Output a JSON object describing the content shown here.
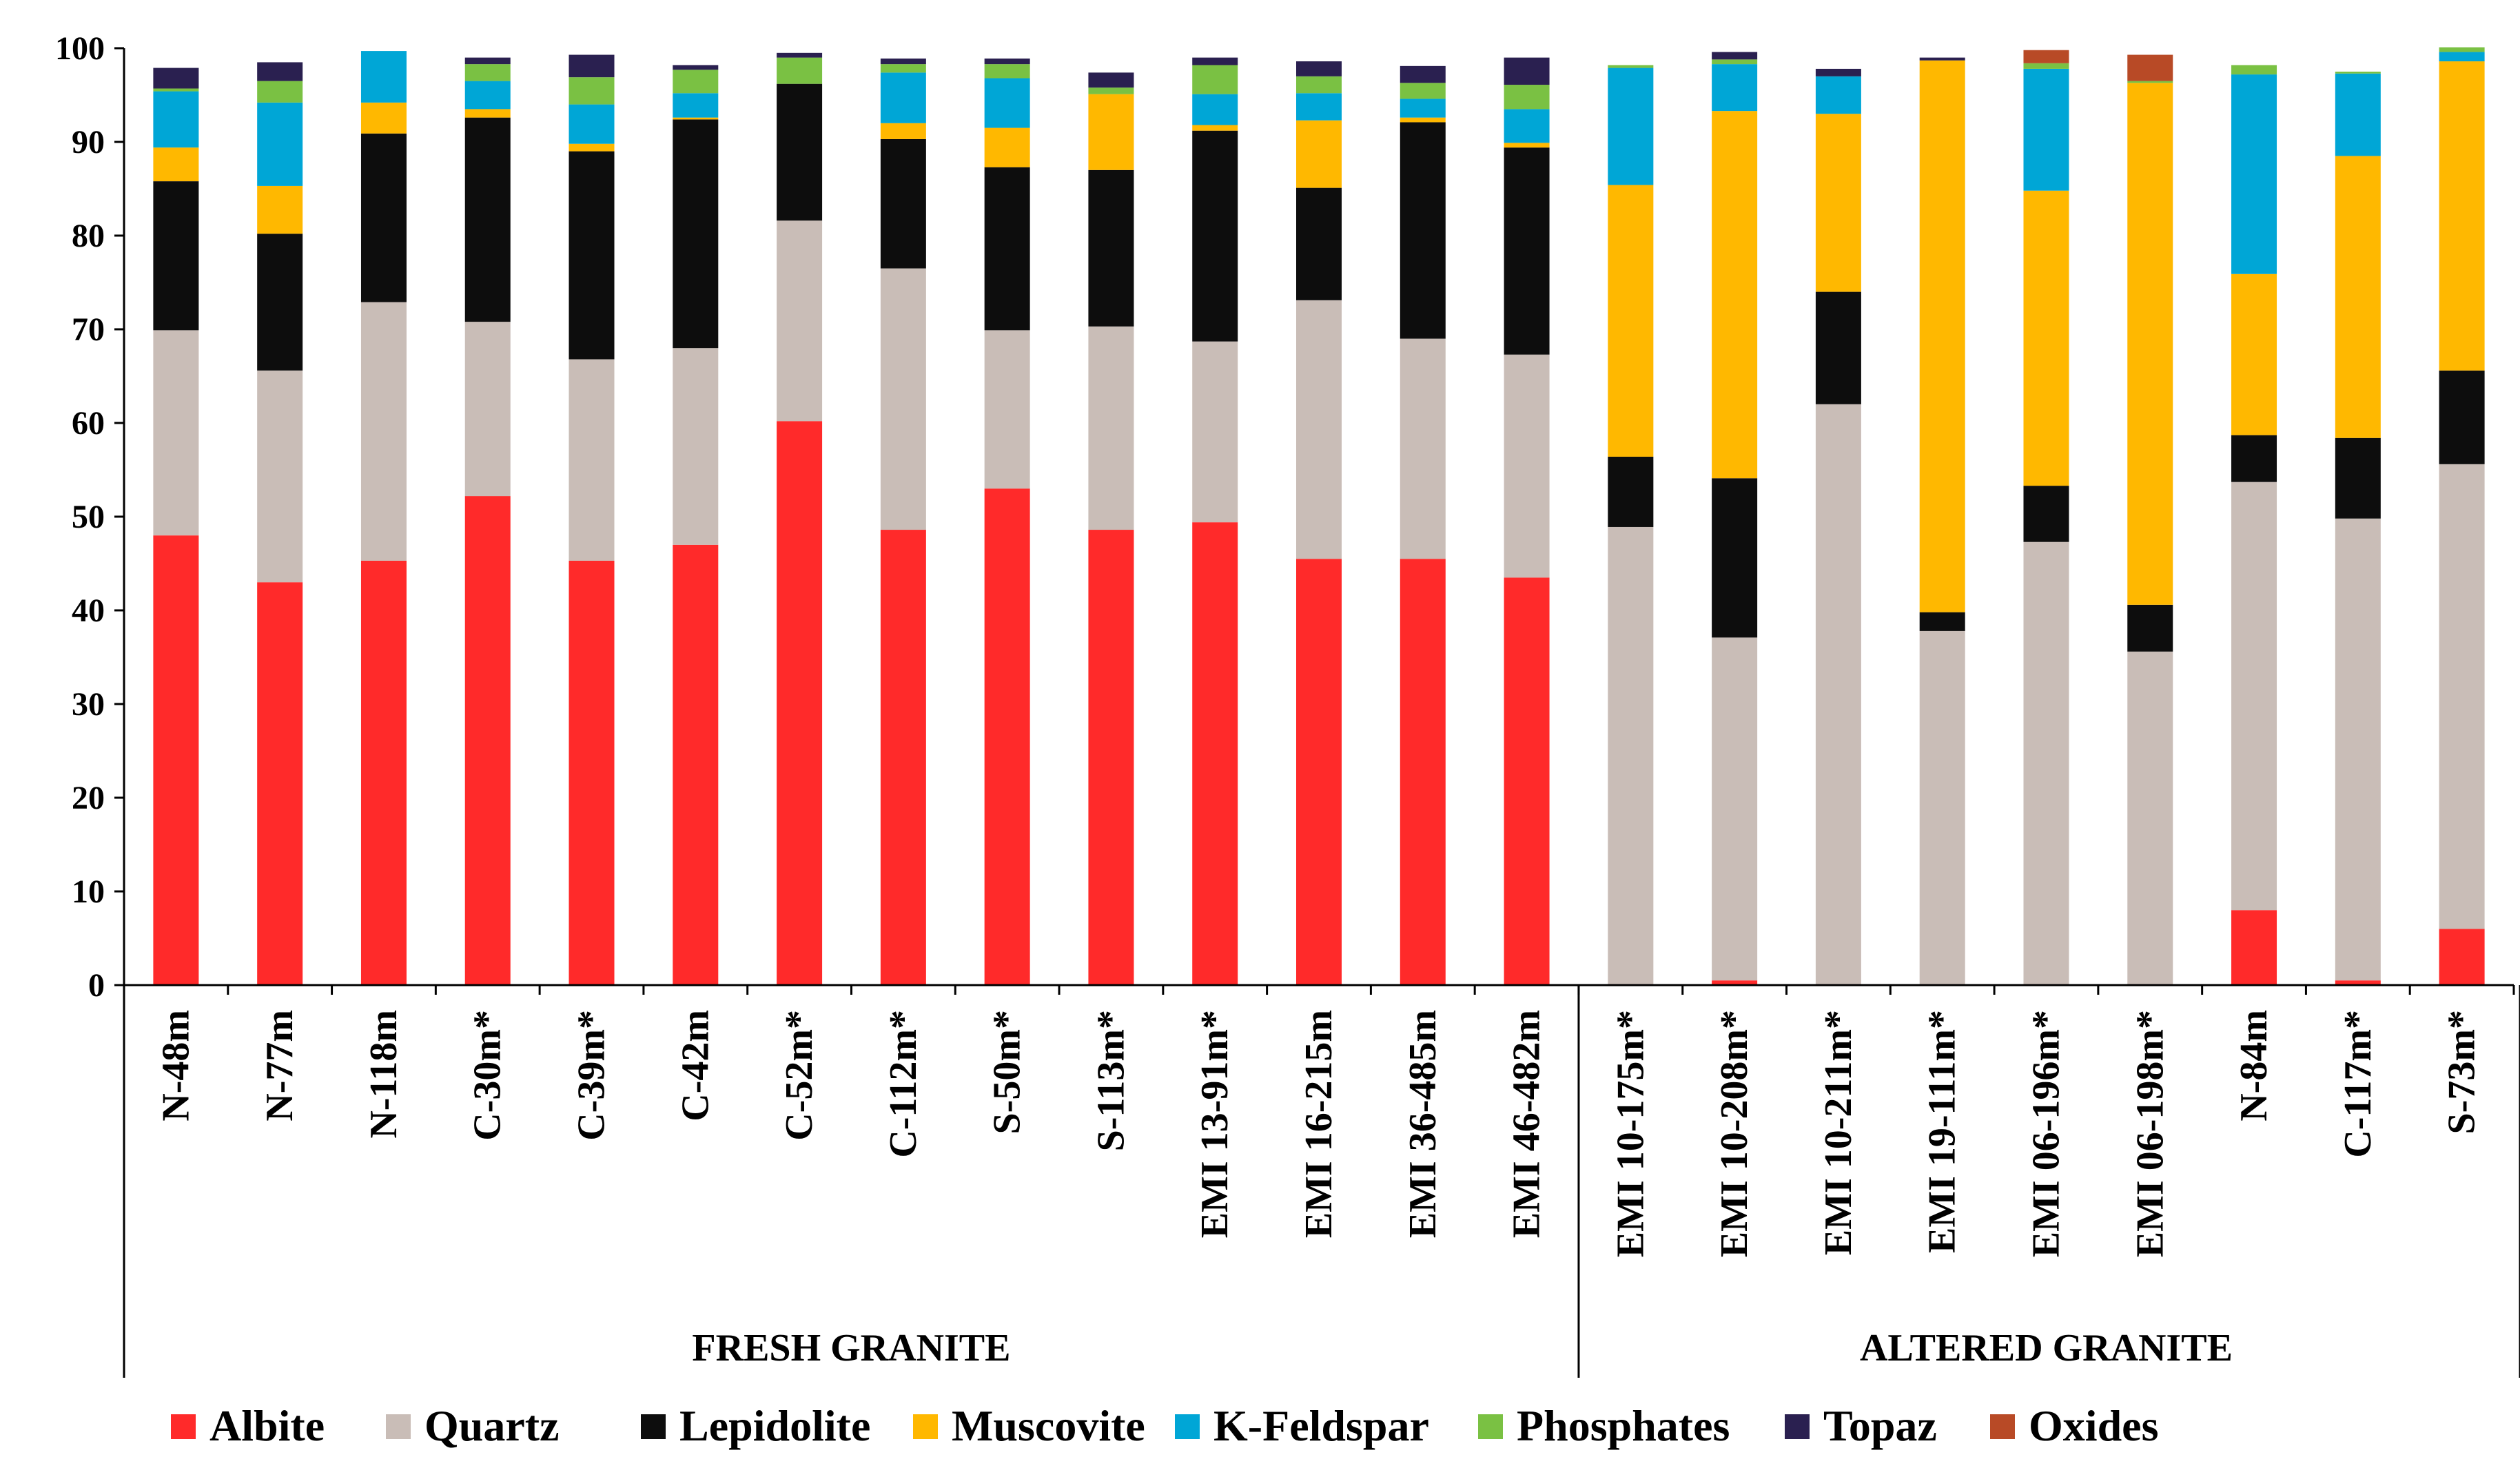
{
  "chart_data": {
    "type": "bar",
    "stacked": true,
    "ylim": [
      0,
      100
    ],
    "yticks": [
      "0",
      "10",
      "20",
      "30",
      "40",
      "50",
      "60",
      "70",
      "80",
      "90",
      "100"
    ],
    "categories": [
      "N-48m",
      "N-77m",
      "N-118m",
      "C-30m*",
      "C-39m*",
      "C-42m",
      "C-52m*",
      "C-112m*",
      "S-50m*",
      "S-113m*",
      "EMI 13-91m*",
      "EMI 16-215m",
      "EMI 36-485m",
      "EMI 46-482m",
      "EMI 10-175m*",
      "EMI 10-208m*",
      "EMI 10-211m*",
      "EMI 19-111m*",
      "EMI 06-196m*",
      "EMI 06-198m*",
      "N-84m",
      "C-117m*",
      "S-73m*"
    ],
    "groups": [
      {
        "label": "FRESH GRANITE",
        "start": 0,
        "end": 13
      },
      {
        "label": "ALTERED GRANITE",
        "start": 14,
        "end": 22
      }
    ],
    "series": [
      {
        "name": "Albite",
        "color": "#ff2a2a",
        "values": [
          48,
          43,
          45.3,
          52.2,
          45.3,
          47,
          60.2,
          48.6,
          53,
          48.6,
          49.4,
          45.5,
          45.5,
          43.5,
          0,
          0.5,
          0,
          0,
          0,
          0,
          8,
          0.5,
          6
        ]
      },
      {
        "name": "Quartz",
        "color": "#c9bdb7",
        "values": [
          21.9,
          22.6,
          27.6,
          18.6,
          21.5,
          21,
          21.4,
          27.9,
          16.9,
          21.7,
          19.3,
          27.6,
          23.5,
          23.8,
          48.9,
          36.6,
          62,
          37.8,
          47.3,
          35.6,
          45.7,
          49.3,
          49.6
        ]
      },
      {
        "name": "Lepidolite",
        "color": "#0d0d0d",
        "values": [
          15.9,
          14.6,
          18,
          21.8,
          22.2,
          24.4,
          14.6,
          13.8,
          17.4,
          16.7,
          22.5,
          12,
          23.1,
          22.1,
          7.5,
          17,
          12,
          2,
          6,
          5,
          5,
          8.6,
          10
        ]
      },
      {
        "name": "Muscovite",
        "color": "#ffb800",
        "values": [
          3.6,
          5.1,
          3.3,
          0.9,
          0.8,
          0.2,
          0,
          1.7,
          4.2,
          8.1,
          0.6,
          7.2,
          0.5,
          0.5,
          29,
          39.2,
          19,
          58.9,
          31.5,
          55.7,
          17.2,
          30.1,
          33
        ]
      },
      {
        "name": "K-Feldspar",
        "color": "#00a6d6",
        "values": [
          6,
          8.9,
          5.5,
          3,
          4.2,
          2.6,
          0,
          5.4,
          5.3,
          0,
          3.3,
          2.9,
          2,
          3.6,
          12.5,
          5,
          4,
          0,
          13,
          0,
          21.3,
          8.8,
          1
        ]
      },
      {
        "name": "Phosphates",
        "color": "#7ac143",
        "values": [
          0.3,
          2.3,
          0,
          1.8,
          2.9,
          2.5,
          2.8,
          0.9,
          1.5,
          0.7,
          3.1,
          1.8,
          1.7,
          2.6,
          0.3,
          0.5,
          0,
          0,
          0.6,
          0.2,
          1,
          0.2,
          0.5
        ]
      },
      {
        "name": "Topaz",
        "color": "#2a2050",
        "values": [
          2.2,
          2,
          0,
          0.7,
          2.4,
          0.5,
          0.5,
          0.6,
          0.6,
          1.6,
          0.8,
          1.6,
          1.8,
          2.9,
          0,
          0.8,
          0.8,
          0.3,
          0,
          0,
          0,
          0,
          0
        ]
      },
      {
        "name": "Oxides",
        "color": "#b84a26",
        "values": [
          0,
          0,
          0,
          0,
          0,
          0,
          0,
          0,
          0,
          0,
          0,
          0,
          0,
          0,
          0,
          0,
          0,
          0,
          1.4,
          2.8,
          0,
          0,
          0
        ]
      }
    ]
  }
}
